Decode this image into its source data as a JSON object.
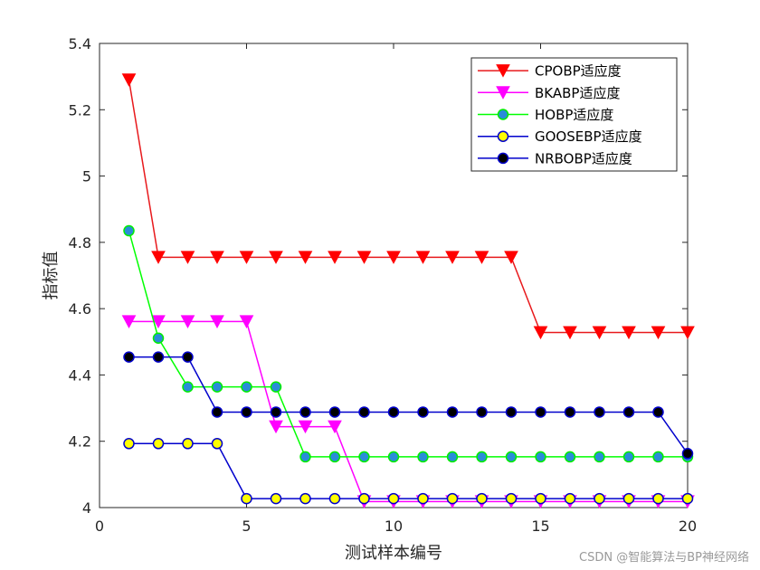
{
  "chart_data": {
    "type": "line",
    "xlabel": "测试样本编号",
    "ylabel": "指标值",
    "xlim": [
      0,
      20
    ],
    "ylim": [
      4,
      5.4
    ],
    "xticks": [
      0,
      5,
      10,
      15,
      20
    ],
    "xtick_labels": [
      "0",
      "5",
      "10",
      "15",
      "20"
    ],
    "yticks": [
      4,
      4.2,
      4.4,
      4.6,
      4.8,
      5,
      5.2,
      5.4
    ],
    "ytick_labels": [
      "4",
      "4.2",
      "4.4",
      "4.6",
      "4.8",
      "5",
      "5.2",
      "5.4"
    ],
    "grid": false,
    "legend_position": "top-right",
    "x": [
      1,
      2,
      3,
      4,
      5,
      6,
      7,
      8,
      9,
      10,
      11,
      12,
      13,
      14,
      15,
      16,
      17,
      18,
      19,
      20
    ],
    "series": [
      {
        "name": "CPOBP适应度",
        "line_color": "#e8191c",
        "marker": "triangle-down",
        "marker_fill": "#ff0000",
        "marker_edge": "#ff0000",
        "values": [
          5.29,
          4.755,
          4.755,
          4.755,
          4.755,
          4.755,
          4.755,
          4.755,
          4.755,
          4.755,
          4.755,
          4.755,
          4.755,
          4.755,
          4.528,
          4.528,
          4.528,
          4.528,
          4.528,
          4.528
        ]
      },
      {
        "name": "BKABP适应度",
        "line_color": "#ff00ff",
        "marker": "triangle-down",
        "marker_fill": "#ff00ff",
        "marker_edge": "#ff00ff",
        "values": [
          4.561,
          4.561,
          4.561,
          4.561,
          4.561,
          4.244,
          4.244,
          4.244,
          4.018,
          4.018,
          4.018,
          4.018,
          4.018,
          4.018,
          4.018,
          4.018,
          4.018,
          4.018,
          4.018,
          4.018
        ]
      },
      {
        "name": "HOBP适应度",
        "line_color": "#00ff00",
        "marker": "circle",
        "marker_fill": "#2a8cd8",
        "marker_edge": "#00ee00",
        "values": [
          4.835,
          4.511,
          4.364,
          4.364,
          4.364,
          4.364,
          4.153,
          4.153,
          4.153,
          4.153,
          4.153,
          4.153,
          4.153,
          4.153,
          4.153,
          4.153,
          4.153,
          4.153,
          4.153,
          4.153
        ]
      },
      {
        "name": "GOOSEBP适应度",
        "line_color": "#0000cc",
        "marker": "circle",
        "marker_fill": "#ffff00",
        "marker_edge": "#0000cc",
        "values": [
          4.193,
          4.193,
          4.193,
          4.193,
          4.027,
          4.027,
          4.027,
          4.027,
          4.027,
          4.027,
          4.027,
          4.027,
          4.027,
          4.027,
          4.027,
          4.027,
          4.027,
          4.027,
          4.027,
          4.027
        ]
      },
      {
        "name": "NRBOBP适应度",
        "line_color": "#0000cc",
        "marker": "circle",
        "marker_fill": "#000000",
        "marker_edge": "#0000cc",
        "values": [
          4.454,
          4.454,
          4.454,
          4.288,
          4.288,
          4.288,
          4.288,
          4.288,
          4.288,
          4.288,
          4.288,
          4.288,
          4.288,
          4.288,
          4.288,
          4.288,
          4.288,
          4.288,
          4.288,
          4.163
        ]
      }
    ]
  },
  "watermark": "CSDN @智能算法与BP神经网络"
}
